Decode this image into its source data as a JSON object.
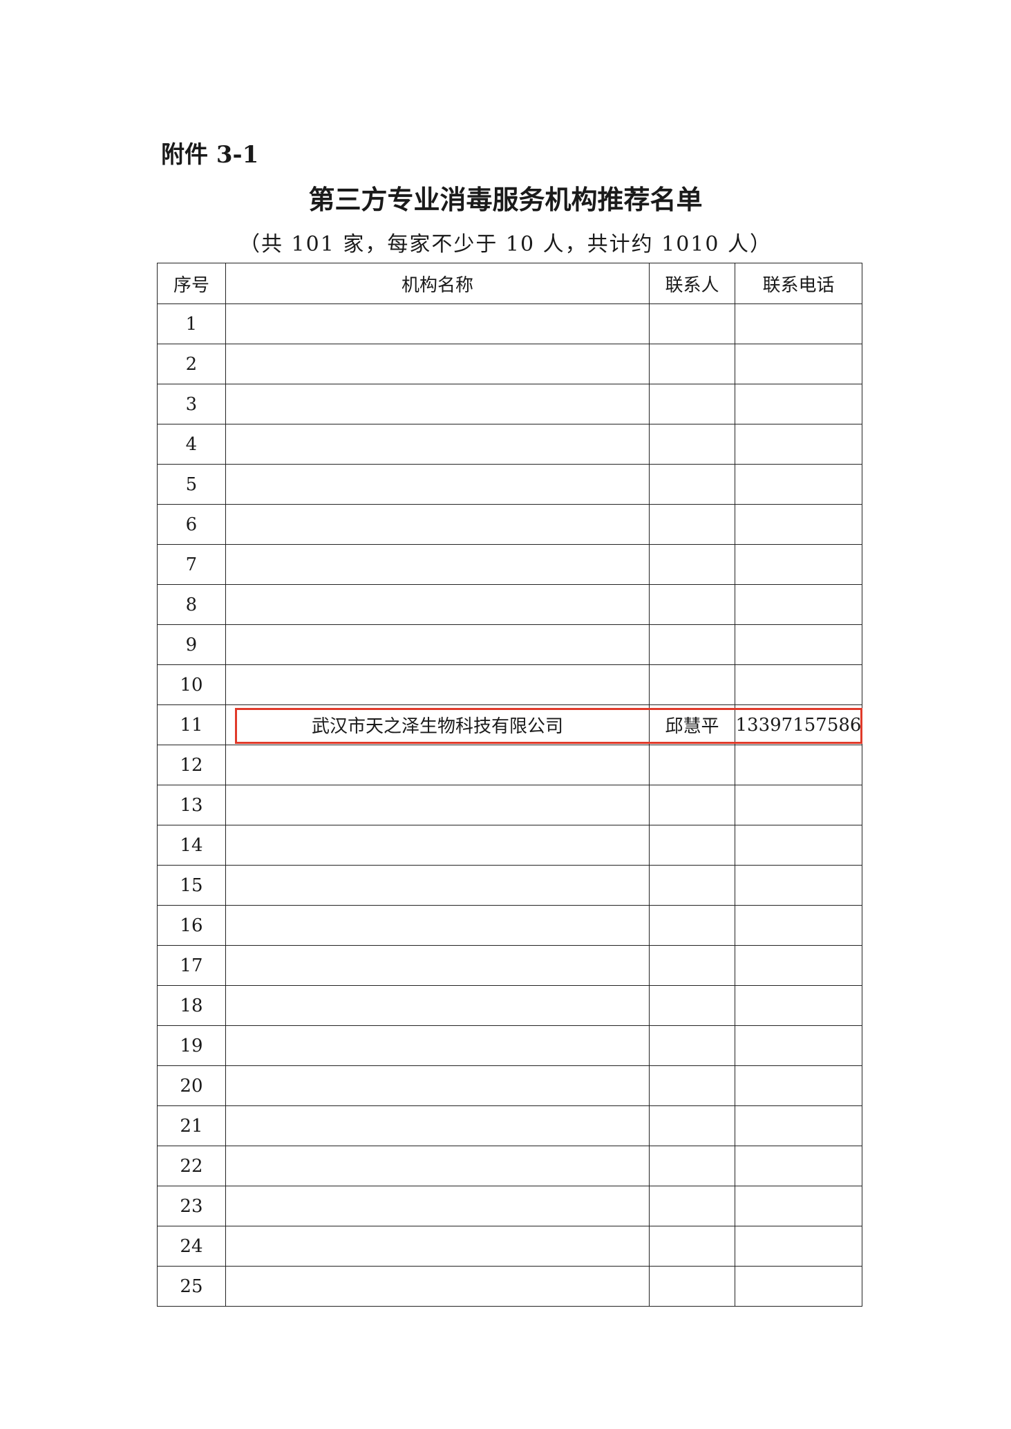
{
  "header": {
    "label": "附件 3-1",
    "title": "第三方专业消毒服务机构推荐名单",
    "subtitle": "（共 101 家，每家不少于 10 人，共计约 1010 人）"
  },
  "table": {
    "columns": [
      "序号",
      "机构名称",
      "联系人",
      "联系电话"
    ],
    "rows": [
      [
        "1"
      ],
      [
        "2"
      ],
      [
        "3"
      ],
      [
        "4"
      ],
      [
        "5"
      ],
      [
        "6"
      ],
      [
        "7"
      ],
      [
        "8"
      ],
      [
        "9"
      ],
      [
        "10"
      ],
      [
        "11",
        "武汉市天之泽生物科技有限公司",
        "邱慧平",
        "13397157586"
      ],
      [
        "12"
      ],
      [
        "13"
      ],
      [
        "14"
      ],
      [
        "15"
      ],
      [
        "16"
      ],
      [
        "17"
      ],
      [
        "18"
      ],
      [
        "19"
      ],
      [
        "20"
      ],
      [
        "21"
      ],
      [
        "22"
      ],
      [
        "23"
      ],
      [
        "24"
      ],
      [
        "25"
      ]
    ]
  }
}
